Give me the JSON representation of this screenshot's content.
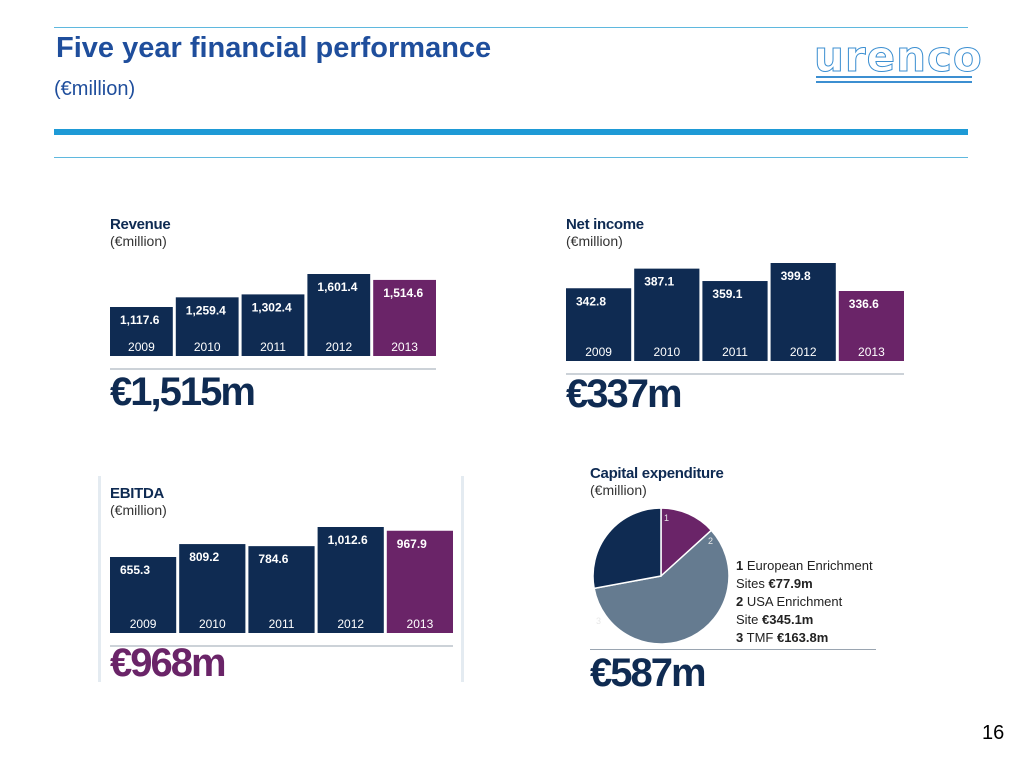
{
  "header": {
    "title": "Five year financial performance",
    "subtitle": "(€million)",
    "logo_text": "urenco",
    "page_number": "16"
  },
  "colors": {
    "navy": "#0f2b52",
    "purple": "#6a2468",
    "slate": "#657b90",
    "accent_blue": "#1e9ad6"
  },
  "chart_data": [
    {
      "type": "bar",
      "title": "Revenue",
      "unit": "(€million)",
      "categories": [
        "2009",
        "2010",
        "2011",
        "2012",
        "2013"
      ],
      "values": [
        1117.6,
        1259.4,
        1302.4,
        1601.4,
        1514.6
      ],
      "value_labels": [
        "1,117.6",
        "1,259.4",
        "1,302.4",
        "1,601.4",
        "1,514.6"
      ],
      "highlight_index": 4,
      "headline": "€1,515m"
    },
    {
      "type": "bar",
      "title": "Net income",
      "unit": "(€million)",
      "categories": [
        "2009",
        "2010",
        "2011",
        "2012",
        "2013"
      ],
      "values": [
        342.8,
        387.1,
        359.1,
        399.8,
        336.6
      ],
      "value_labels": [
        "342.8",
        "387.1",
        "359.1",
        "399.8",
        "336.6"
      ],
      "highlight_index": 4,
      "headline": "€337m"
    },
    {
      "type": "bar",
      "title": "EBITDA",
      "unit": "(€million)",
      "categories": [
        "2009",
        "2010",
        "2011",
        "2012",
        "2013"
      ],
      "values": [
        655.3,
        809.2,
        784.6,
        1012.6,
        967.9
      ],
      "value_labels": [
        "655.3",
        "809.2",
        "784.6",
        "1,012.6",
        "967.9"
      ],
      "highlight_index": 4,
      "headline": "€968m"
    },
    {
      "type": "pie",
      "title": "Capital expenditure",
      "unit": "(€million)",
      "slices": [
        {
          "number": "1",
          "name_line1": "European Enrichment",
          "name_line2": "Sites",
          "value": 77.9,
          "value_label": "€77.9m"
        },
        {
          "number": "2",
          "name_line1": "USA Enrichment",
          "name_line2": "Site",
          "value": 345.1,
          "value_label": "€345.1m"
        },
        {
          "number": "3",
          "name_line1": "TMF",
          "name_line2": "",
          "value": 163.8,
          "value_label": "€163.8m"
        }
      ],
      "headline": "€587m"
    }
  ]
}
